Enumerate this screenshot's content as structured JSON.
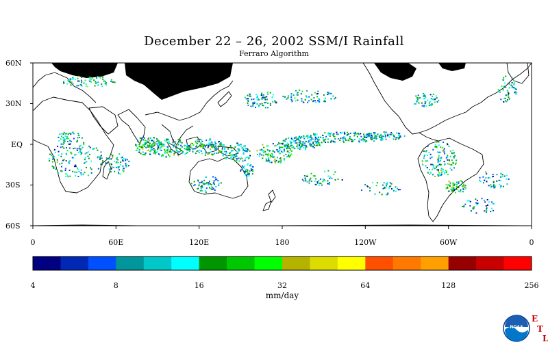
{
  "title": "December 22 – 26, 2002 SSM/I Rainfall",
  "subtitle": "Ferraro Algorithm",
  "map": {
    "lat_labels": [
      "60N",
      "30N",
      "EQ",
      "30S",
      "60S"
    ],
    "lon_labels": [
      "0",
      "60E",
      "120E",
      "180",
      "120W",
      "60W",
      "0"
    ],
    "lat_range": [
      -60,
      60
    ],
    "lon_range": [
      0,
      360
    ],
    "land_color": "#ffffff",
    "missing_color": "#000000",
    "coastline_color": "#000000"
  },
  "legend": {
    "unit": "mm/day",
    "tick_labels": [
      "4",
      "8",
      "16",
      "32",
      "64",
      "128",
      "256"
    ],
    "scale": "log2",
    "colors": [
      "#000080",
      "#0028b4",
      "#0050ff",
      "#00969b",
      "#00c8c8",
      "#00ffff",
      "#009600",
      "#00c800",
      "#00ff00",
      "#b4b400",
      "#dcdc00",
      "#ffff00",
      "#ff5000",
      "#ff7800",
      "#ffa000",
      "#960000",
      "#c80000",
      "#ff0000"
    ]
  },
  "logos": {
    "noaa": "NOAA",
    "etl_letters": [
      "E",
      "T",
      "L"
    ],
    "etl_color": "#cc0000",
    "noaa_color": "#0077c8"
  }
}
